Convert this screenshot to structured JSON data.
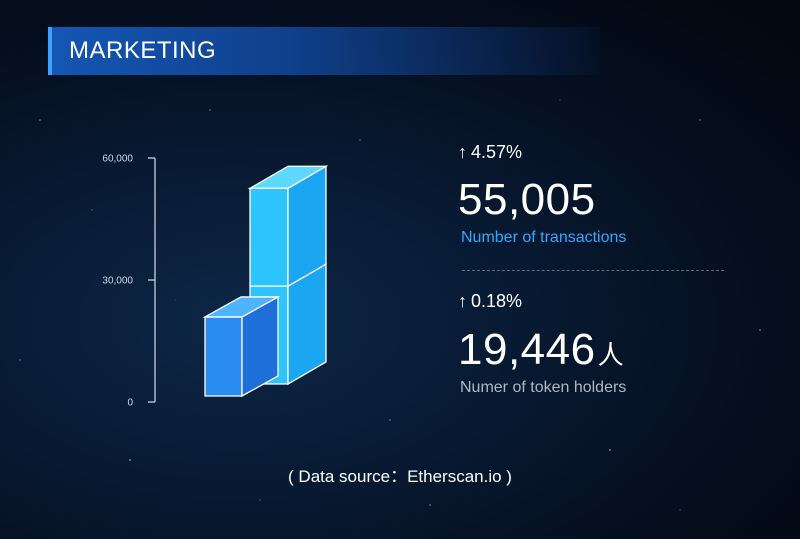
{
  "header": {
    "title": "MARKETING"
  },
  "chart_data": {
    "type": "bar",
    "style": "isometric-cubes",
    "categories": [
      "Number of transactions",
      "Numer of token holders"
    ],
    "values": [
      55005,
      19446
    ],
    "ylim": [
      0,
      60000
    ],
    "yticks": [
      "0",
      "30,000",
      "60,000"
    ],
    "colors": [
      "#2ec4ff",
      "#1e8bff"
    ]
  },
  "stats": [
    {
      "change": "4.57%",
      "value": "55,005",
      "unit": "",
      "label": "Number of  transactions",
      "label_color": "#2fa8ff"
    },
    {
      "change": "0.18%",
      "value": "19,446",
      "unit": "人",
      "label": "Numer of token holders",
      "label_color": "#aeb7c4"
    }
  ],
  "arrow_icon": "↑",
  "footer": {
    "source": "( Data source：Etherscan.io )"
  }
}
